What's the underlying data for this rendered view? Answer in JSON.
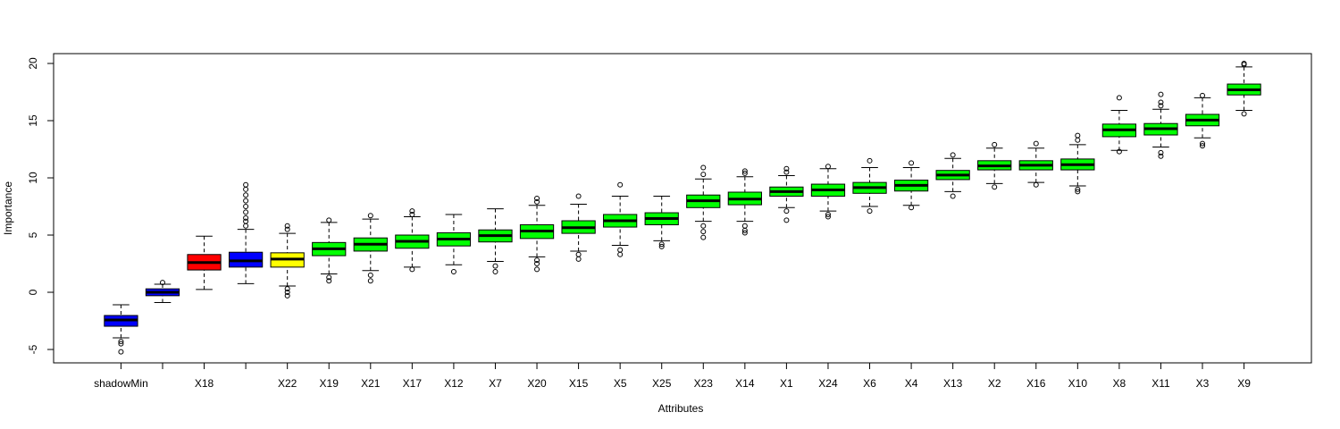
{
  "chart_data": {
    "type": "boxplot",
    "x_label": "Attributes",
    "y_label": "Importance",
    "categories": [
      "shadowMin",
      null,
      "X18",
      null,
      "X22",
      "X19",
      "X21",
      "X17",
      "X12",
      "X7",
      "X20",
      "X15",
      "X5",
      "X25",
      "X23",
      "X14",
      "X1",
      "X24",
      "X6",
      "X4",
      "X13",
      "X2",
      "X16",
      "X10",
      "X8",
      "X11",
      "X3",
      "X9"
    ],
    "ylim": [
      -6.17,
      20.86
    ],
    "yticks": [
      -5,
      0,
      5,
      10,
      15,
      20
    ],
    "boxes": [
      {
        "low": -3.98,
        "q1": -2.97,
        "median": -2.42,
        "q3": -2.03,
        "high": -1.09,
        "outliers": [
          -4.3,
          -4.5,
          -5.2
        ],
        "color": "#0000ff"
      },
      {
        "low": -0.9,
        "q1": -0.3,
        "median": 0,
        "q3": 0.3,
        "high": 0.7,
        "outliers": [
          0.85
        ],
        "color": "#0000ff"
      },
      {
        "low": 0.25,
        "q1": 1.95,
        "median": 2.6,
        "q3": 3.3,
        "high": 4.9,
        "outliers": [],
        "color": "#ff0000"
      },
      {
        "low": 0.75,
        "q1": 2.2,
        "median": 2.75,
        "q3": 3.5,
        "high": 5.5,
        "outliers": [
          5.8,
          6.2,
          6.5,
          7,
          7.5,
          8,
          8.5,
          9,
          9.4
        ],
        "color": "#0000ff"
      },
      {
        "low": 0.55,
        "q1": 2.2,
        "median": 2.9,
        "q3": 3.45,
        "high": 5.15,
        "outliers": [
          5.5,
          5.8,
          0.3,
          0,
          -0.3
        ],
        "color": "#ffff00"
      },
      {
        "low": 1.6,
        "q1": 3.2,
        "median": 3.8,
        "q3": 4.35,
        "high": 6.1,
        "outliers": [
          1.3,
          1.0,
          6.3
        ],
        "color": "#00ff00"
      },
      {
        "low": 1.9,
        "q1": 3.6,
        "median": 4.2,
        "q3": 4.75,
        "high": 6.4,
        "outliers": [
          1.5,
          1.0,
          6.7
        ],
        "color": "#00ff00"
      },
      {
        "low": 2.2,
        "q1": 3.85,
        "median": 4.45,
        "q3": 5.0,
        "high": 6.6,
        "outliers": [
          2.0,
          6.8,
          7.1
        ],
        "color": "#00ff00"
      },
      {
        "low": 2.4,
        "q1": 4.05,
        "median": 4.65,
        "q3": 5.2,
        "high": 6.8,
        "outliers": [
          1.8
        ],
        "color": "#00ff00"
      },
      {
        "low": 2.7,
        "q1": 4.4,
        "median": 4.95,
        "q3": 5.45,
        "high": 7.3,
        "outliers": [
          2.3,
          1.8
        ],
        "color": "#00ff00"
      },
      {
        "low": 3.1,
        "q1": 4.7,
        "median": 5.35,
        "q3": 5.9,
        "high": 7.6,
        "outliers": [
          2.8,
          2.5,
          2.0,
          7.9,
          8.2
        ],
        "color": "#00ff00"
      },
      {
        "low": 3.6,
        "q1": 5.15,
        "median": 5.65,
        "q3": 6.25,
        "high": 7.7,
        "outliers": [
          3.3,
          2.9,
          8.4
        ],
        "color": "#00ff00"
      },
      {
        "low": 4.1,
        "q1": 5.7,
        "median": 6.25,
        "q3": 6.8,
        "high": 8.4,
        "outliers": [
          3.7,
          3.3,
          9.4
        ],
        "color": "#00ff00"
      },
      {
        "low": 4.5,
        "q1": 5.9,
        "median": 6.45,
        "q3": 6.95,
        "high": 8.4,
        "outliers": [
          4.2,
          4.0
        ],
        "color": "#00ff00"
      },
      {
        "low": 6.2,
        "q1": 7.4,
        "median": 8.0,
        "q3": 8.5,
        "high": 9.9,
        "outliers": [
          5.8,
          5.3,
          4.8,
          10.3,
          10.9
        ],
        "color": "#00ff00"
      },
      {
        "low": 6.2,
        "q1": 7.65,
        "median": 8.15,
        "q3": 8.75,
        "high": 10.1,
        "outliers": [
          5.8,
          5.4,
          5.2,
          10.4,
          10.6
        ],
        "color": "#00ff00"
      },
      {
        "low": 7.4,
        "q1": 8.4,
        "median": 8.8,
        "q3": 9.2,
        "high": 10.2,
        "outliers": [
          7.1,
          6.3,
          10.5,
          10.8
        ],
        "color": "#00ff00"
      },
      {
        "low": 7.1,
        "q1": 8.4,
        "median": 8.95,
        "q3": 9.45,
        "high": 10.8,
        "outliers": [
          6.8,
          6.6,
          11.0
        ],
        "color": "#00ff00"
      },
      {
        "low": 7.5,
        "q1": 8.65,
        "median": 9.15,
        "q3": 9.6,
        "high": 10.9,
        "outliers": [
          7.1,
          11.5
        ],
        "color": "#00ff00"
      },
      {
        "low": 7.6,
        "q1": 8.85,
        "median": 9.35,
        "q3": 9.8,
        "high": 10.9,
        "outliers": [
          7.4,
          11.3
        ],
        "color": "#00ff00"
      },
      {
        "low": 8.8,
        "q1": 9.85,
        "median": 10.25,
        "q3": 10.65,
        "high": 11.7,
        "outliers": [
          8.4,
          12.0
        ],
        "color": "#00ff00"
      },
      {
        "low": 9.5,
        "q1": 10.7,
        "median": 11.05,
        "q3": 11.5,
        "high": 12.6,
        "outliers": [
          9.2,
          12.9
        ],
        "color": "#00ff00"
      },
      {
        "low": 9.6,
        "q1": 10.7,
        "median": 11.1,
        "q3": 11.5,
        "high": 12.6,
        "outliers": [
          9.4,
          13.0
        ],
        "color": "#00ff00"
      },
      {
        "low": 9.3,
        "q1": 10.7,
        "median": 11.15,
        "q3": 11.65,
        "high": 12.9,
        "outliers": [
          9.0,
          8.8,
          13.3,
          13.7
        ],
        "color": "#00ff00"
      },
      {
        "low": 12.4,
        "q1": 13.6,
        "median": 14.2,
        "q3": 14.7,
        "high": 15.9,
        "outliers": [
          12.3,
          17.0
        ],
        "color": "#00ff00"
      },
      {
        "low": 12.7,
        "q1": 13.75,
        "median": 14.3,
        "q3": 14.75,
        "high": 16.0,
        "outliers": [
          12.2,
          11.9,
          16.3,
          16.6,
          17.3
        ],
        "color": "#00ff00"
      },
      {
        "low": 13.5,
        "q1": 14.55,
        "median": 15.05,
        "q3": 15.55,
        "high": 17.0,
        "outliers": [
          13.0,
          12.8,
          17.2
        ],
        "color": "#00ff00"
      },
      {
        "low": 15.9,
        "q1": 17.25,
        "median": 17.7,
        "q3": 18.2,
        "high": 19.7,
        "outliers": [
          15.6,
          19.9,
          20.0
        ],
        "color": "#00ff00"
      }
    ]
  }
}
